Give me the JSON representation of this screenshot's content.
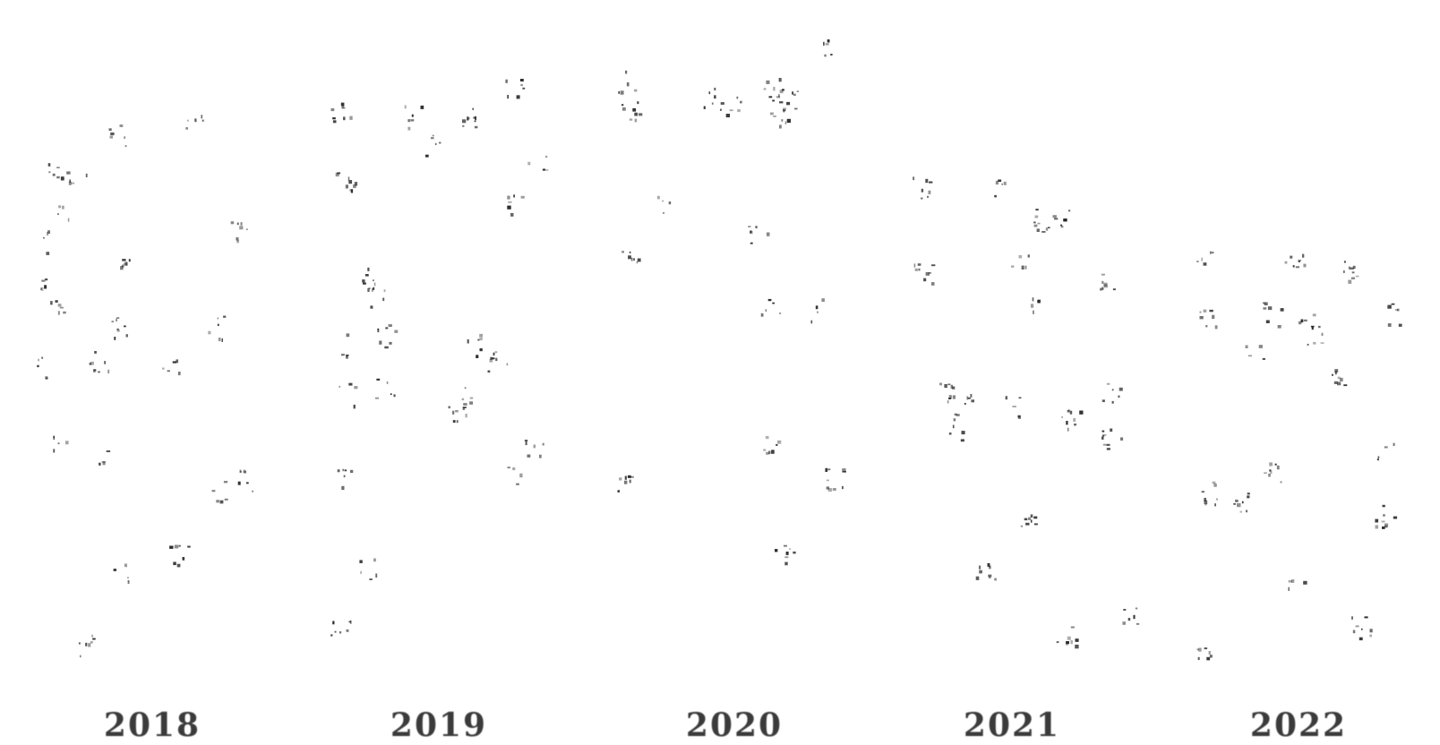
{
  "years": [
    "2018",
    "2019",
    "2020",
    "2021",
    "2022"
  ],
  "ink_color": "#222222",
  "background_color": "#ffffff"
}
